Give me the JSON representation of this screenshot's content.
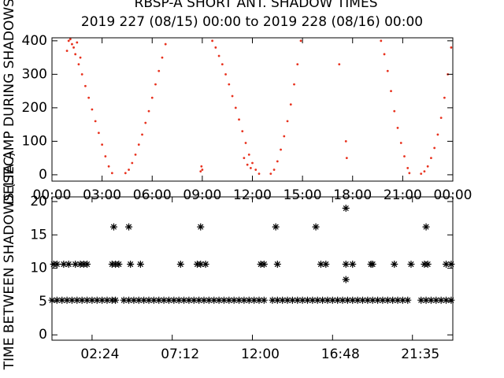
{
  "chart_data": [
    {
      "type": "scatter",
      "title": "RBSP-A SHORT ANT. SHADOW TIMES",
      "subtitle": "2019 227 (08/15) 00:00 to 2019 228 (08/16) 00:00",
      "y_label": "DELTA AMP DURING SHADOWS",
      "marker": "dot",
      "color": "#e8321e",
      "xlim": [
        0,
        24
      ],
      "xticks": [
        {
          "value": 0,
          "label": "00:00"
        },
        {
          "value": 3,
          "label": "03:00"
        },
        {
          "value": 6,
          "label": "06:00"
        },
        {
          "value": 9,
          "label": "09:00"
        },
        {
          "value": 12,
          "label": "12:00"
        },
        {
          "value": 15,
          "label": "15:00"
        },
        {
          "value": 18,
          "label": "18:00"
        },
        {
          "value": 21,
          "label": "21:00"
        },
        {
          "value": 24,
          "label": "00:00"
        }
      ],
      "ylim": [
        -19,
        409
      ],
      "yticks": [
        0,
        100,
        200,
        300,
        400
      ],
      "x": [
        1.0,
        1.2,
        1.4,
        1.6,
        1.8,
        2.0,
        2.2,
        2.4,
        2.6,
        2.8,
        3.0,
        3.2,
        3.4,
        3.6,
        1.1,
        1.3,
        1.5,
        1.7,
        0.9,
        4.4,
        4.6,
        4.8,
        5.0,
        5.2,
        5.4,
        5.6,
        5.8,
        6.0,
        6.2,
        6.4,
        6.6,
        6.8,
        8.9,
        8.95,
        9.0,
        9.6,
        9.8,
        10.0,
        10.2,
        10.4,
        10.6,
        10.8,
        11.0,
        11.2,
        11.4,
        11.6,
        11.8,
        12.0,
        12.2,
        12.4,
        11.5,
        11.7,
        11.9,
        13.1,
        13.3,
        13.5,
        13.7,
        13.9,
        14.1,
        14.3,
        14.5,
        14.7,
        14.9,
        17.6,
        17.65,
        17.2,
        19.7,
        19.9,
        20.1,
        20.3,
        20.5,
        20.7,
        20.9,
        21.1,
        21.3,
        21.4,
        22.1,
        22.3,
        22.5,
        22.7,
        22.9,
        23.1,
        23.3,
        23.5,
        23.7,
        23.9
      ],
      "values": [
        400,
        390,
        360,
        330,
        300,
        265,
        230,
        195,
        160,
        125,
        90,
        55,
        25,
        5,
        405,
        380,
        395,
        350,
        370,
        5,
        15,
        35,
        60,
        90,
        120,
        155,
        190,
        230,
        270,
        310,
        350,
        390,
        10,
        25,
        15,
        400,
        380,
        355,
        330,
        300,
        270,
        235,
        200,
        165,
        130,
        95,
        60,
        35,
        15,
        3,
        50,
        30,
        20,
        3,
        15,
        40,
        75,
        115,
        160,
        210,
        270,
        330,
        400,
        100,
        50,
        330,
        400,
        360,
        310,
        250,
        190,
        140,
        95,
        55,
        20,
        5,
        3,
        10,
        25,
        50,
        80,
        120,
        170,
        230,
        300,
        380
      ]
    },
    {
      "type": "scatter",
      "y_label": "TIME BETWEEN SHADOWS (SEC)",
      "marker": "asterisk",
      "color": "#000000",
      "xlim": [
        0,
        24
      ],
      "xticks": [
        {
          "value": 2.4,
          "label": "02:24"
        },
        {
          "value": 7.2,
          "label": "07:12"
        },
        {
          "value": 12,
          "label": "12:00"
        },
        {
          "value": 16.8,
          "label": "16:48"
        },
        {
          "value": 21.5833,
          "label": "21:35"
        }
      ],
      "ylim": [
        -0.8,
        20.7
      ],
      "yticks": [
        0,
        5,
        10,
        15,
        20
      ],
      "x": [
        0,
        0.3,
        0.6,
        0.9,
        1.2,
        1.5,
        1.8,
        2.1,
        2.4,
        2.7,
        3.0,
        3.3,
        3.6,
        3.8,
        4.3,
        4.6,
        4.9,
        5.2,
        5.5,
        5.8,
        6.1,
        6.4,
        6.7,
        7.0,
        7.3,
        7.6,
        7.9,
        8.2,
        8.5,
        8.8,
        9.1,
        9.4,
        9.7,
        10.0,
        10.3,
        10.6,
        10.9,
        11.2,
        11.5,
        11.8,
        12.1,
        12.4,
        12.7,
        13.2,
        13.5,
        13.8,
        14.1,
        14.4,
        14.7,
        15.0,
        15.3,
        15.6,
        15.9,
        16.2,
        16.5,
        16.8,
        17.1,
        17.4,
        17.7,
        18.0,
        18.3,
        18.6,
        18.9,
        19.2,
        19.5,
        19.8,
        20.1,
        20.4,
        20.7,
        21.0,
        21.3,
        22.1,
        22.4,
        22.7,
        23.0,
        23.3,
        23.6,
        23.9,
        0.1,
        0.3,
        0.7,
        1.0,
        1.4,
        1.7,
        1.9,
        2.1,
        3.6,
        3.8,
        4.0,
        4.7,
        5.3,
        7.7,
        8.7,
        8.9,
        9.2,
        12.5,
        12.7,
        13.5,
        16.1,
        16.4,
        17.6,
        18.0,
        19.1,
        19.2,
        20.5,
        21.5,
        22.3,
        22.5,
        23.6,
        23.9,
        3.7,
        4.6,
        8.9,
        13.4,
        15.8,
        22.4,
        17.6,
        17.6
      ],
      "values": [
        5.2,
        5.2,
        5.2,
        5.2,
        5.2,
        5.2,
        5.2,
        5.2,
        5.2,
        5.2,
        5.2,
        5.2,
        5.2,
        5.2,
        5.2,
        5.2,
        5.2,
        5.2,
        5.2,
        5.2,
        5.2,
        5.2,
        5.2,
        5.2,
        5.2,
        5.2,
        5.2,
        5.2,
        5.2,
        5.2,
        5.2,
        5.2,
        5.2,
        5.2,
        5.2,
        5.2,
        5.2,
        5.2,
        5.2,
        5.2,
        5.2,
        5.2,
        5.2,
        5.2,
        5.2,
        5.2,
        5.2,
        5.2,
        5.2,
        5.2,
        5.2,
        5.2,
        5.2,
        5.2,
        5.2,
        5.2,
        5.2,
        5.2,
        5.2,
        5.2,
        5.2,
        5.2,
        5.2,
        5.2,
        5.2,
        5.2,
        5.2,
        5.2,
        5.2,
        5.2,
        5.2,
        5.2,
        5.2,
        5.2,
        5.2,
        5.2,
        5.2,
        5.2,
        10.6,
        10.6,
        10.6,
        10.6,
        10.6,
        10.6,
        10.6,
        10.6,
        10.6,
        10.6,
        10.6,
        10.6,
        10.6,
        10.6,
        10.6,
        10.6,
        10.6,
        10.6,
        10.6,
        10.6,
        10.6,
        10.6,
        10.6,
        10.6,
        10.6,
        10.6,
        10.6,
        10.6,
        10.6,
        10.6,
        10.6,
        10.6,
        16.2,
        16.2,
        16.2,
        16.2,
        16.2,
        16.2,
        19.0,
        8.3
      ]
    }
  ]
}
